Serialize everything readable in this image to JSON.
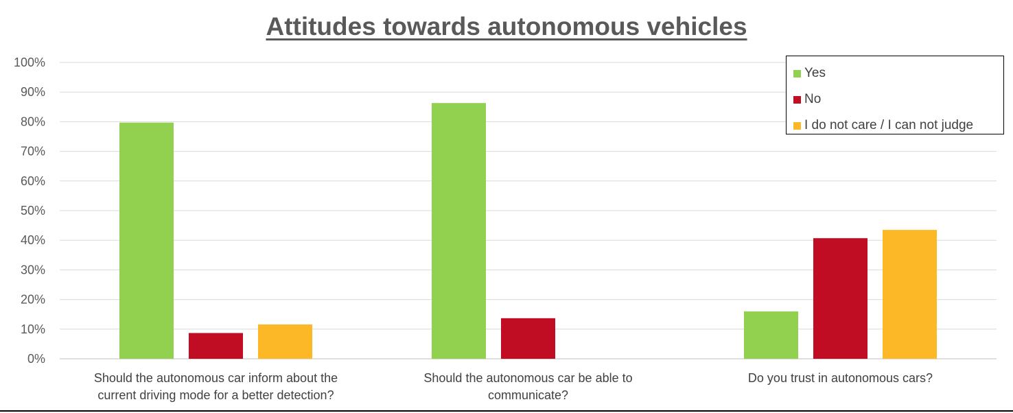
{
  "chart_data": {
    "type": "bar",
    "title": "Attitudes towards autonomous vehicles",
    "categories": [
      [
        "Should the autonomous car inform about the",
        "current driving mode for a better detection?"
      ],
      [
        "Should the autonomous car be able to",
        "communicate?"
      ],
      [
        "Do you trust in autonomous cars?"
      ]
    ],
    "series": [
      {
        "name": "Yes",
        "color": "#92d050",
        "values": [
          79.7,
          86.3,
          16.0
        ]
      },
      {
        "name": "No",
        "color": "#c00d23",
        "values": [
          8.7,
          13.7,
          40.7
        ]
      },
      {
        "name": "I do not care / I can not judge",
        "color": "#fdb827",
        "values": [
          11.6,
          0,
          43.5
        ]
      }
    ],
    "ylim": [
      0,
      100
    ],
    "yticks": [
      "0%",
      "10%",
      "20%",
      "30%",
      "40%",
      "50%",
      "60%",
      "70%",
      "80%",
      "90%",
      "100%"
    ],
    "grid": true,
    "legend_position": "top-right"
  }
}
